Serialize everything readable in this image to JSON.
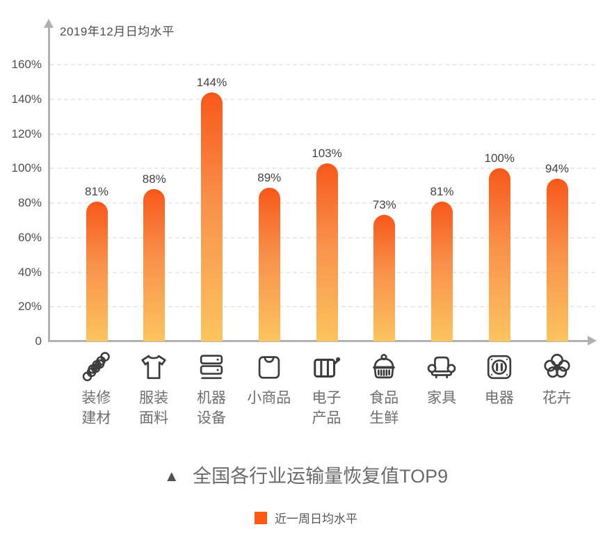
{
  "chart_data": {
    "type": "bar",
    "title": "全国各行业运输量恢复值TOP9",
    "axis_title": "2019年12月日均水平",
    "legend": [
      "近一周日均水平"
    ],
    "legend_position": "bottom",
    "grid": "horizontal-dashed",
    "ylim": [
      0,
      170
    ],
    "y_ticks": [
      {
        "label": "160%",
        "value": 160
      },
      {
        "label": "140%",
        "value": 140
      },
      {
        "label": "120%",
        "value": 120
      },
      {
        "label": "100%",
        "value": 100
      },
      {
        "label": "80%",
        "value": 80
      },
      {
        "label": "60%",
        "value": 60
      },
      {
        "label": "40%",
        "value": 40
      },
      {
        "label": "20%",
        "value": 20
      },
      {
        "label": "0",
        "value": 0
      }
    ],
    "categories": [
      {
        "name": "decoration-materials",
        "label": "装修\n建材",
        "icon": "pipes-icon"
      },
      {
        "name": "clothing-fabric",
        "label": "服装\n面料",
        "icon": "tshirt-icon"
      },
      {
        "name": "machinery-equipment",
        "label": "机器\n设备",
        "icon": "machine-icon"
      },
      {
        "name": "small-commodities",
        "label": "小商品",
        "icon": "shopping-bag-icon"
      },
      {
        "name": "electronics",
        "label": "电子\n产品",
        "icon": "battery-icon"
      },
      {
        "name": "fresh-food",
        "label": "食品\n生鲜",
        "icon": "food-basket-icon"
      },
      {
        "name": "furniture",
        "label": "家具",
        "icon": "sofa-icon"
      },
      {
        "name": "appliances",
        "label": "电器",
        "icon": "power-socket-icon"
      },
      {
        "name": "flowers",
        "label": "花卉",
        "icon": "flower-icon"
      }
    ],
    "series": [
      {
        "name": "近一周日均水平",
        "values": [
          81,
          88,
          144,
          89,
          103,
          73,
          81,
          100,
          94
        ]
      }
    ],
    "value_labels": [
      "81%",
      "88%",
      "144%",
      "89%",
      "103%",
      "73%",
      "81%",
      "100%",
      "94%"
    ],
    "colors": {
      "bar_gradient_top": "#f8581a",
      "bar_gradient_mid": "#f9914b",
      "bar_gradient_bottom": "#fcc45e",
      "legend_swatch": "#f95815",
      "axis": "#b1b1b1",
      "gridline": "#ebebeb",
      "tick_text": "#4e4e4e",
      "value_text": "#434343",
      "category_text": "#6e6e6e",
      "title_text": "#6a6a6a",
      "icon_stroke": "#3c3c3c"
    }
  },
  "footer": {
    "triangle": "▲"
  }
}
